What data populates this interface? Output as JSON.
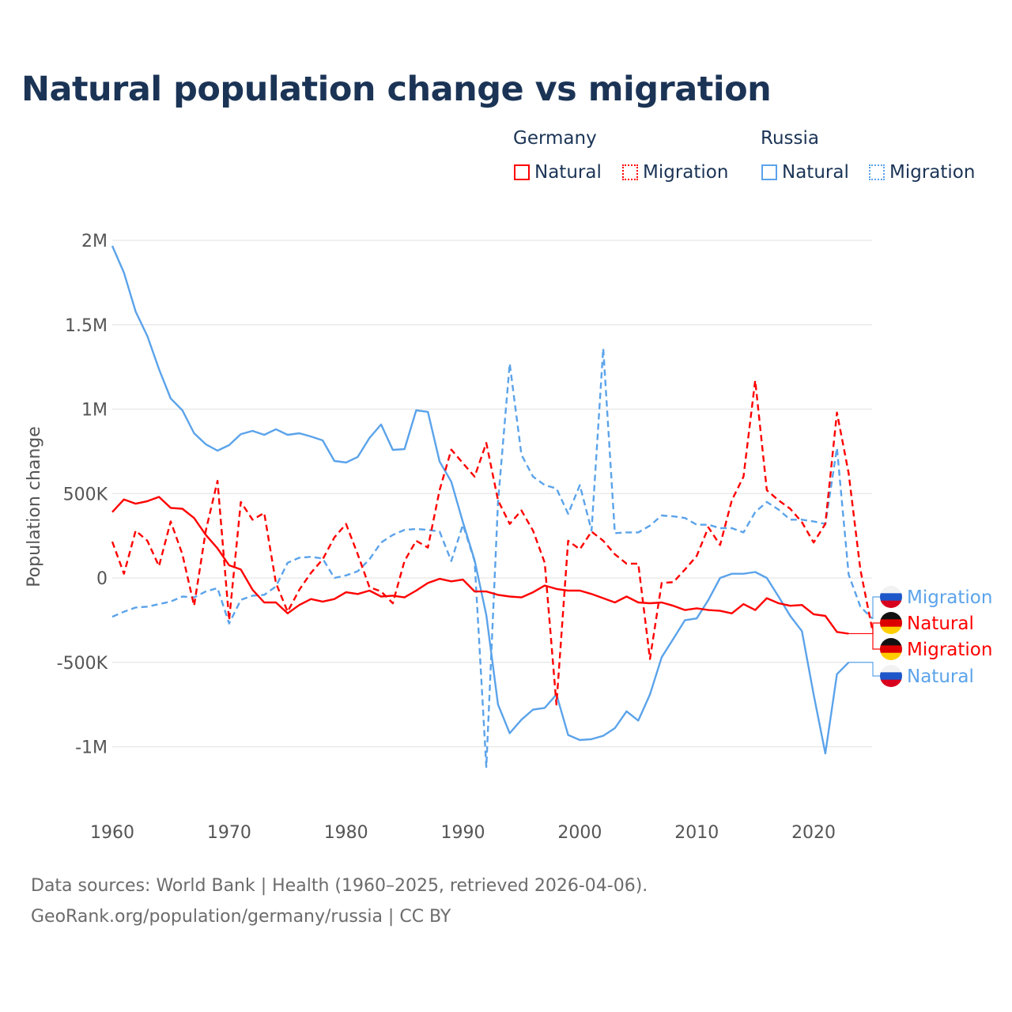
{
  "title": "Natural population change vs migration",
  "legend": {
    "groups": [
      {
        "name": "Germany",
        "items": [
          {
            "label": "Natural",
            "style": "solid",
            "color": "#ff0000"
          },
          {
            "label": "Migration",
            "style": "dotted",
            "color": "#ff0000"
          }
        ]
      },
      {
        "name": "Russia",
        "items": [
          {
            "label": "Natural",
            "style": "solid",
            "color": "#5ba3ea"
          },
          {
            "label": "Migration",
            "style": "dotted",
            "color": "#5ba3ea"
          }
        ]
      }
    ]
  },
  "footer": {
    "line1": "Data sources: World Bank | Health (1960–2025, retrieved 2026-04-06).",
    "line2": "GeoRank.org/population/germany/russia | CC BY"
  },
  "chart_data": {
    "type": "line",
    "title": "Natural population change vs migration",
    "xlabel": "",
    "ylabel": "Population change",
    "xlim": [
      1960,
      2025
    ],
    "ylim": [
      -1200000,
      2000000
    ],
    "x_ticks": [
      1960,
      1970,
      1980,
      1990,
      2000,
      2010,
      2020
    ],
    "x_tick_labels": [
      "1960",
      "1970",
      "1980",
      "1990",
      "2000",
      "2010",
      "2020"
    ],
    "y_ticks": [
      2000000,
      1500000,
      1000000,
      500000,
      0,
      -500000,
      -1000000
    ],
    "y_tick_labels": [
      "2M",
      "1.5M",
      "1M",
      "500K",
      "0",
      "-500K",
      "-1M"
    ],
    "grid": true,
    "legend_position": "top-right",
    "series": [
      {
        "name": "Germany Natural",
        "end_label": "Natural",
        "country": "germany",
        "color": "#ff0000",
        "dash": false,
        "start_year": 1960,
        "values_k": [
          390,
          465,
          440,
          455,
          480,
          415,
          410,
          355,
          255,
          175,
          75,
          50,
          -70,
          -145,
          -145,
          -210,
          -160,
          -125,
          -140,
          -125,
          -85,
          -95,
          -75,
          -110,
          -105,
          -115,
          -75,
          -30,
          -5,
          -20,
          -10,
          -80,
          -80,
          -100,
          -110,
          -115,
          -85,
          -45,
          -65,
          -75,
          -75,
          -95,
          -120,
          -145,
          -110,
          -145,
          -150,
          -145,
          -165,
          -190,
          -180,
          -190,
          -195,
          -210,
          -155,
          -190,
          -120,
          -150,
          -165,
          -160,
          -215,
          -225,
          -320,
          -330
        ]
      },
      {
        "name": "Germany Migration",
        "end_label": "Migration",
        "country": "germany",
        "color": "#ff0000",
        "dash": true,
        "start_year": 1960,
        "values_k": [
          215,
          25,
          280,
          220,
          70,
          335,
          140,
          -165,
          280,
          575,
          -250,
          450,
          345,
          385,
          -30,
          -200,
          -70,
          30,
          110,
          240,
          320,
          140,
          -55,
          -80,
          -150,
          100,
          220,
          180,
          520,
          760,
          680,
          600,
          800,
          460,
          320,
          400,
          280,
          90,
          -750,
          220,
          170,
          275,
          220,
          140,
          85,
          85,
          -480,
          -30,
          -25,
          50,
          130,
          300,
          195,
          460,
          600,
          1170,
          520,
          460,
          410,
          330,
          210,
          320,
          980,
          620,
          50,
          -300
        ]
      },
      {
        "name": "Russia Natural",
        "end_label": "Natural",
        "country": "russia",
        "color": "#5ba3ea",
        "dash": false,
        "start_year": 1960,
        "values_k": [
          1967,
          1808,
          1578,
          1433,
          1237,
          1063,
          993,
          857,
          792,
          754,
          787,
          852,
          871,
          848,
          881,
          848,
          857,
          838,
          815,
          693,
          684,
          717,
          829,
          909,
          759,
          763,
          993,
          984,
          690,
          570,
          330,
          105,
          -220,
          -750,
          -920,
          -840,
          -780,
          -770,
          -690,
          -930,
          -960,
          -955,
          -935,
          -890,
          -790,
          -845,
          -690,
          -470,
          -360,
          -250,
          -240,
          -130,
          0,
          25,
          25,
          35,
          0,
          -110,
          -225,
          -315,
          -690,
          -1040,
          -570,
          -500
        ]
      },
      {
        "name": "Russia Migration",
        "end_label": "Migration",
        "country": "russia",
        "color": "#5ba3ea",
        "dash": true,
        "start_year": 1960,
        "values_k": [
          -230,
          -200,
          -175,
          -170,
          -155,
          -140,
          -110,
          -115,
          -80,
          -60,
          -270,
          -130,
          -105,
          -100,
          -50,
          90,
          120,
          125,
          115,
          0,
          15,
          40,
          110,
          210,
          255,
          285,
          290,
          285,
          275,
          100,
          315,
          100,
          -1120,
          450,
          1270,
          730,
          600,
          550,
          530,
          380,
          550,
          280,
          1360,
          265,
          270,
          270,
          310,
          370,
          365,
          355,
          315,
          315,
          295,
          295,
          270,
          390,
          450,
          405,
          345,
          345,
          335,
          320,
          770,
          20,
          -170,
          -240
        ]
      }
    ],
    "end_label_order": [
      "Russia Migration",
      "Germany Natural",
      "Germany Migration",
      "Russia Natural"
    ]
  }
}
